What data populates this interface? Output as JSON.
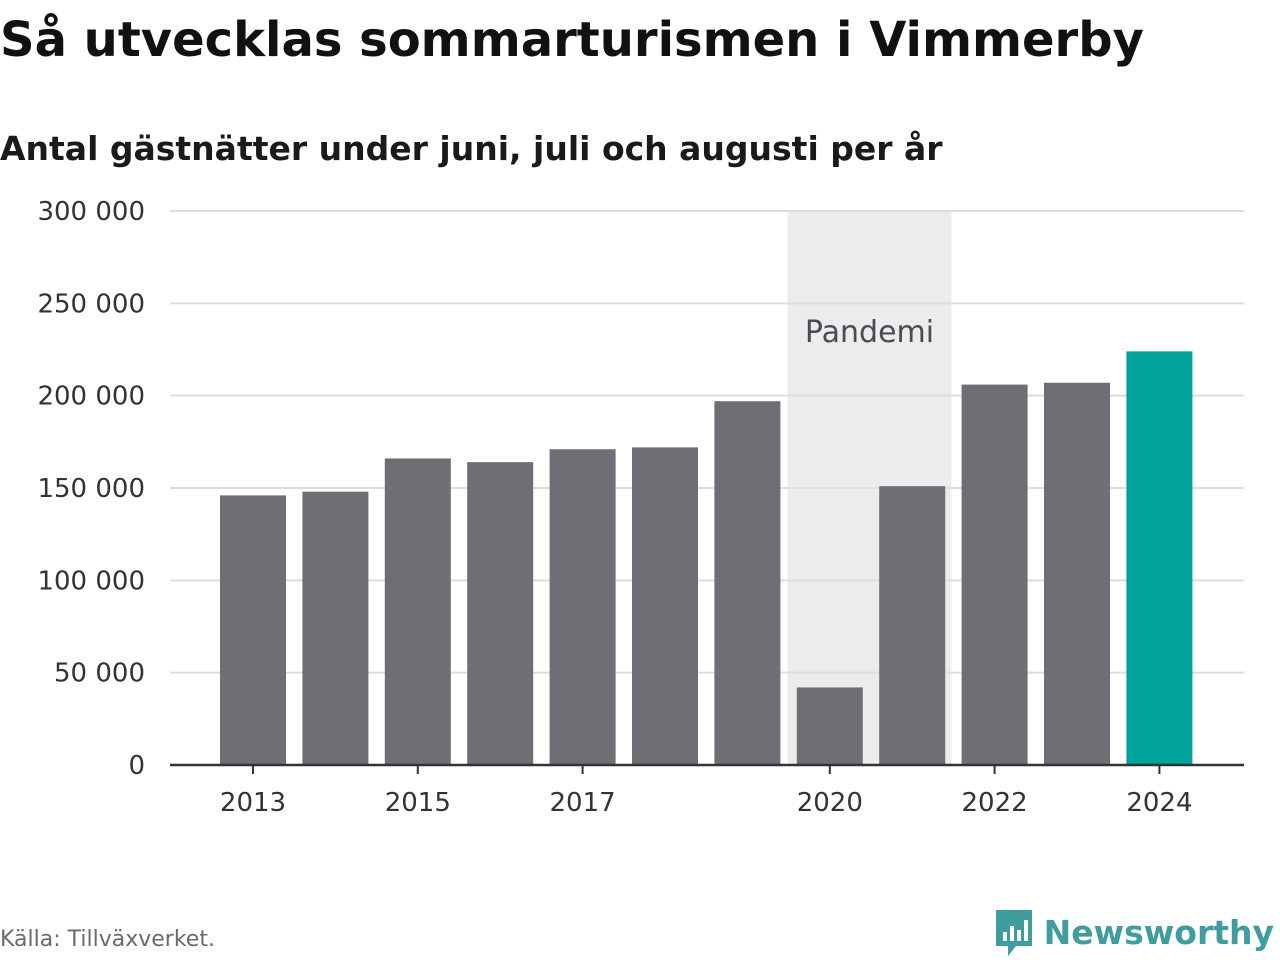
{
  "title": "Så utvecklas sommarturismen i Vimmerby",
  "subtitle": "Antal gästnätter under juni, juli och augusti per år",
  "source": "Källa: Tillväxverket.",
  "brand": {
    "name": "Newsworthy",
    "icon": "newsworthy-logo-icon",
    "color": "#3f9c9f"
  },
  "chart_data": {
    "type": "bar",
    "categories": [
      2013,
      2014,
      2015,
      2016,
      2017,
      2018,
      2019,
      2020,
      2021,
      2022,
      2023,
      2024
    ],
    "values": [
      146000,
      148000,
      166000,
      164000,
      171000,
      172000,
      197000,
      42000,
      151000,
      206000,
      207000,
      224000
    ],
    "highlight_category": 2024,
    "bar_color": "#6f6e75",
    "highlight_color": "#00a39a",
    "ylim": [
      0,
      300000
    ],
    "yticks": [
      0,
      50000,
      100000,
      150000,
      200000,
      250000,
      300000
    ],
    "ytick_labels": [
      "0",
      "50 000",
      "100 000",
      "150 000",
      "200 000",
      "250 000",
      "300 000"
    ],
    "xtick_labels": [
      "2013",
      "2015",
      "2017",
      "2020",
      "2022",
      "2024"
    ],
    "grid": true,
    "shaded_band": {
      "label": "Pandemi",
      "from": 2020,
      "to": 2021,
      "color": "#ececec"
    }
  }
}
